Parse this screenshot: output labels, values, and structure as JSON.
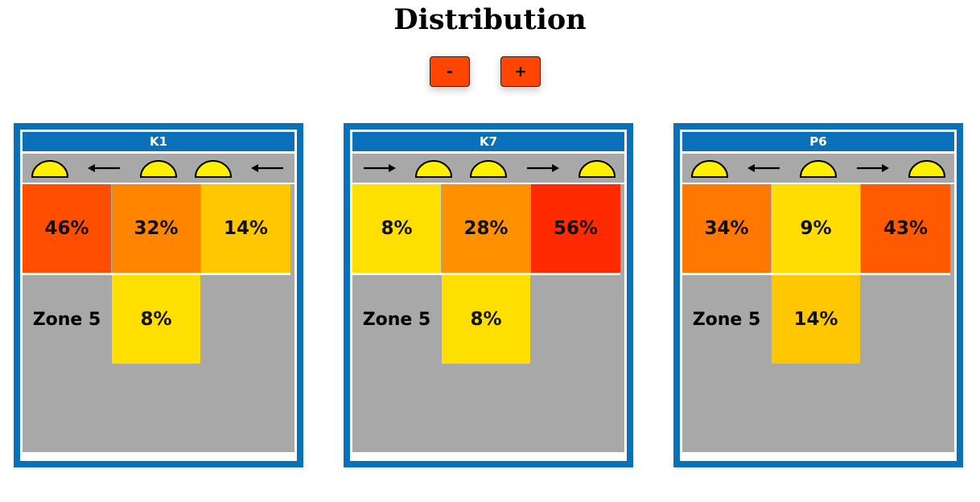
{
  "title": "Distribution",
  "controls": {
    "zoom_out_label": "-",
    "zoom_in_label": "+"
  },
  "panels": [
    {
      "name": "K1",
      "icons": [
        "dome-icon",
        "arrow-left-icon",
        "dome-icon",
        "dome-icon",
        "arrow-left-icon"
      ],
      "top_row": [
        {
          "value": "46%",
          "color": "#ff4e00"
        },
        {
          "value": "32%",
          "color": "#ff8400"
        },
        {
          "value": "14%",
          "color": "#ffc700"
        }
      ],
      "zone_label": "Zone 5",
      "zone_cell": {
        "value": "8%",
        "color": "#ffdf00"
      }
    },
    {
      "name": "K7",
      "icons": [
        "arrow-right-icon",
        "dome-icon",
        "dome-icon",
        "arrow-right-icon",
        "dome-icon"
      ],
      "top_row": [
        {
          "value": "8%",
          "color": "#ffdf00"
        },
        {
          "value": "28%",
          "color": "#ff9000"
        },
        {
          "value": "56%",
          "color": "#ff2a00"
        }
      ],
      "zone_label": "Zone 5",
      "zone_cell": {
        "value": "8%",
        "color": "#ffdf00"
      }
    },
    {
      "name": "P6",
      "icons": [
        "dome-icon",
        "arrow-left-icon",
        "dome-icon",
        "arrow-right-icon",
        "dome-icon"
      ],
      "top_row": [
        {
          "value": "34%",
          "color": "#ff7800"
        },
        {
          "value": "9%",
          "color": "#ffdd00"
        },
        {
          "value": "43%",
          "color": "#ff5a00"
        }
      ],
      "zone_label": "Zone 5",
      "zone_cell": {
        "value": "14%",
        "color": "#ffc700"
      }
    }
  ]
}
